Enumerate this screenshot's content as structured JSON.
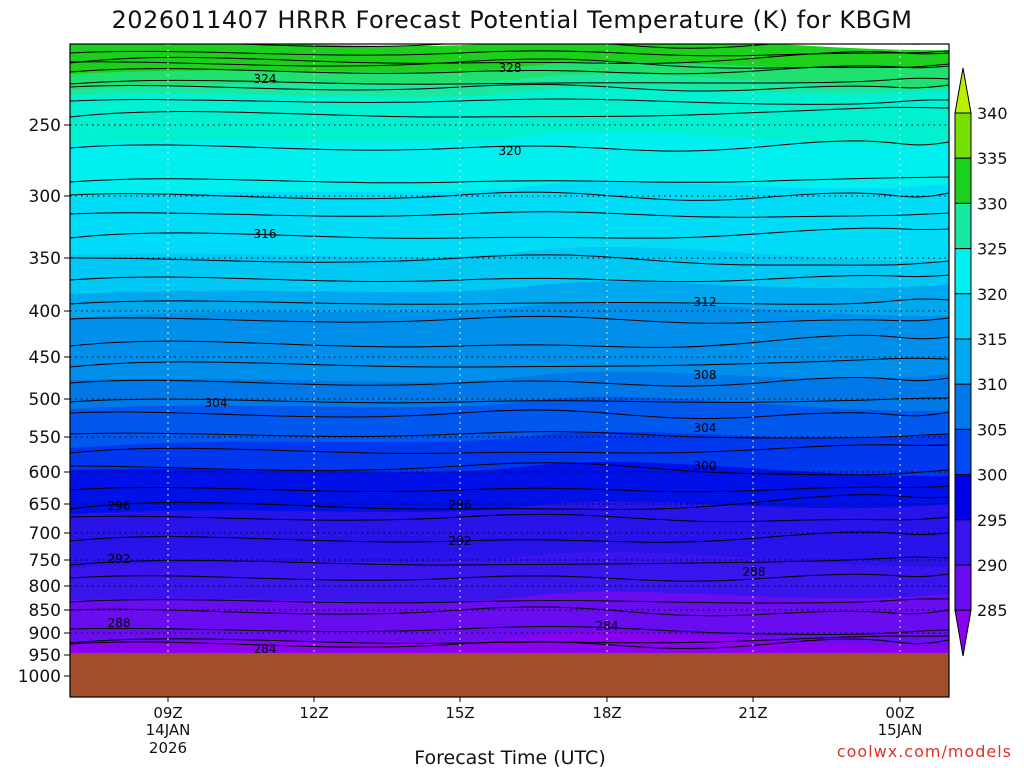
{
  "chart_data": {
    "type": "heatmap",
    "title": "2026011407 HRRR Forecast Potential Temperature (K) for KBGM",
    "xlabel": "Forecast Time (UTC)",
    "ylabel": "",
    "credit": "coolwx.com/models",
    "x_ticks": [
      {
        "label": "09Z",
        "sub": [
          "14JAN",
          "2026"
        ]
      },
      {
        "label": "12Z",
        "sub": []
      },
      {
        "label": "15Z",
        "sub": []
      },
      {
        "label": "18Z",
        "sub": []
      },
      {
        "label": "21Z",
        "sub": []
      },
      {
        "label": "00Z",
        "sub": [
          "15JAN"
        ]
      }
    ],
    "y_ticks": [
      "250",
      "300",
      "350",
      "400",
      "450",
      "500",
      "550",
      "600",
      "650",
      "700",
      "750",
      "800",
      "850",
      "900",
      "950",
      "1000"
    ],
    "y_scale": "log-pressure",
    "colorbar": {
      "labels": [
        "340",
        "335",
        "330",
        "325",
        "320",
        "315",
        "310",
        "305",
        "300",
        "295",
        "290",
        "285"
      ],
      "colors": [
        "#b8f000",
        "#78e000",
        "#1ed01e",
        "#18e8a0",
        "#00f0f0",
        "#00d0f8",
        "#00a8f0",
        "#0078e8",
        "#0048f0",
        "#0000e8",
        "#3a14ec",
        "#6a0cf0",
        "#8a00f0"
      ]
    },
    "ground_color": "#a24e2a",
    "contour_labels": [
      {
        "text": "328",
        "time": "15Z+0.5h",
        "p": 150
      },
      {
        "text": "324",
        "time": "10Z",
        "p": 180
      },
      {
        "text": "320",
        "time": "16Z",
        "p": 270
      },
      {
        "text": "316",
        "time": "11Z",
        "p": 330
      },
      {
        "text": "312",
        "time": "19Z",
        "p": 395
      },
      {
        "text": "308",
        "time": "19Z",
        "p": 470
      },
      {
        "text": "304",
        "time": "10Z",
        "p": 500
      },
      {
        "text": "304",
        "time": "19Z",
        "p": 560
      },
      {
        "text": "300",
        "time": "19Z",
        "p": 600
      },
      {
        "text": "296",
        "time": "08Z",
        "p": 660
      },
      {
        "text": "296",
        "time": "15Z",
        "p": 660
      },
      {
        "text": "292",
        "time": "08Z",
        "p": 750
      },
      {
        "text": "292",
        "time": "15Z",
        "p": 730
      },
      {
        "text": "288",
        "time": "21Z",
        "p": 790
      },
      {
        "text": "288",
        "time": "08Z",
        "p": 880
      },
      {
        "text": "284",
        "time": "18Z",
        "p": 880
      },
      {
        "text": "284",
        "time": "11Z",
        "p": 935
      }
    ]
  }
}
